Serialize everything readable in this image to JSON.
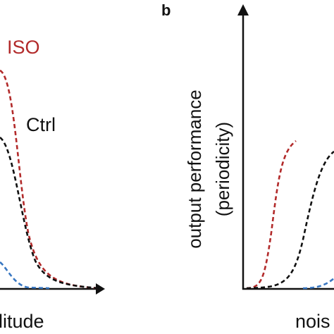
{
  "panel_a": {
    "curve_labels": [
      "ISO",
      "Ctrl"
    ],
    "x_axis_label": "litude"
  },
  "panel_b": {
    "panel_letter": "b",
    "y_axis_label": [
      "output performance",
      "(periodicity)"
    ],
    "x_axis_label": "nois"
  }
}
